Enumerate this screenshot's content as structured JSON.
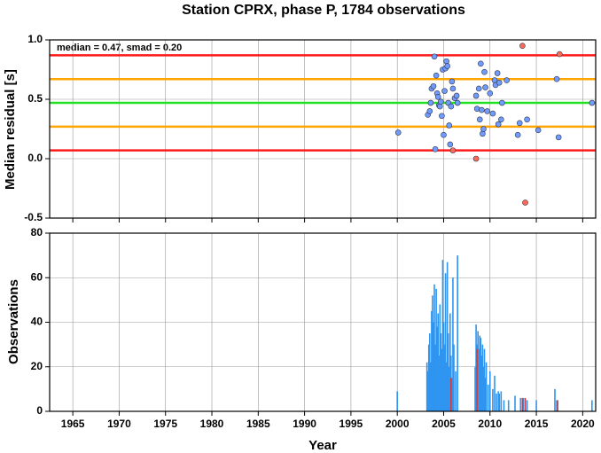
{
  "chart_data": [
    {
      "type": "scatter",
      "title": "Station CPRX, phase P, 1784 observations",
      "y_label": "Median residual [s]",
      "annotation": "median = 0.47, smad = 0.20",
      "xlim": [
        1962.5,
        2021.4
      ],
      "xticks": [
        1965,
        1970,
        1975,
        1980,
        1985,
        1990,
        1995,
        2000,
        2005,
        2010,
        2015,
        2020
      ],
      "ylim": [
        -0.5,
        1.0
      ],
      "yticks": [
        -0.5,
        {
          "value": 0,
          "label": "0.0"
        },
        0.5,
        {
          "value": 1,
          "label": "1.0"
        }
      ],
      "grid": true,
      "hlines": [
        {
          "value": 0.87,
          "color": "#ff1a1a"
        },
        {
          "value": 0.67,
          "color": "#ffa500"
        },
        {
          "value": 0.47,
          "color": "#22e022"
        },
        {
          "value": 0.27,
          "color": "#ffa500"
        },
        {
          "value": 0.07,
          "color": "#ff1a1a"
        }
      ],
      "series": [
        {
          "color": "#6f9cff",
          "x": [
            2000.1,
            2003.3,
            2003.5,
            2003.6,
            2003.7,
            2003.9,
            2004.0,
            2004.1,
            2004.2,
            2004.3,
            2004.4,
            2004.5,
            2004.6,
            2004.7,
            2004.8,
            2004.9,
            2005.0,
            2005.1,
            2005.2,
            2005.3,
            2005.4,
            2005.5,
            2005.6,
            2005.7,
            2005.8,
            2005.9,
            2006.0,
            2006.2,
            2006.4,
            2006.5,
            2008.5,
            2008.6,
            2008.8,
            2008.9,
            2009.0,
            2009.1,
            2009.2,
            2009.3,
            2009.4,
            2009.5,
            2009.7,
            2010.0,
            2010.3,
            2010.5,
            2010.6,
            2010.8,
            2010.9,
            2011.0,
            2011.2,
            2011.3,
            2011.8,
            2013.0,
            2013.2,
            2014.0,
            2015.2,
            2017.2,
            2017.4,
            2021.0
          ],
          "values": [
            0.22,
            0.37,
            0.4,
            0.47,
            0.59,
            0.61,
            0.86,
            0.08,
            0.7,
            0.55,
            0.52,
            0.45,
            0.44,
            0.48,
            0.36,
            0.75,
            0.2,
            0.57,
            0.76,
            0.82,
            0.78,
            0.47,
            0.28,
            0.12,
            0.44,
            0.65,
            0.59,
            0.51,
            0.53,
            0.47,
            0.53,
            0.42,
            0.59,
            0.33,
            0.8,
            0.41,
            0.21,
            0.25,
            0.73,
            0.6,
            0.4,
            0.55,
            0.38,
            0.66,
            0.62,
            0.72,
            0.29,
            0.64,
            0.33,
            0.47,
            0.66,
            0.2,
            0.3,
            0.33,
            0.24,
            0.67,
            0.18,
            0.47
          ]
        },
        {
          "color": "#ff6b5b",
          "x": [
            2006.0,
            2008.5,
            2013.5,
            2013.8,
            2017.5
          ],
          "values": [
            0.07,
            0.0,
            0.95,
            -0.37,
            0.88
          ]
        }
      ]
    },
    {
      "type": "bar",
      "x_label": "Year",
      "y_label": "Observations",
      "xlim": [
        1962.5,
        2021.4
      ],
      "xticks": [
        1965,
        1970,
        1975,
        1980,
        1985,
        1990,
        1995,
        2000,
        2005,
        2010,
        2015,
        2020
      ],
      "ylim": [
        0,
        80
      ],
      "yticks": [
        0,
        20,
        40,
        60,
        80
      ],
      "grid": true,
      "series": [
        {
          "color": "#2f95f0",
          "x": [
            2000.0,
            2003.2,
            2003.3,
            2003.4,
            2003.5,
            2003.6,
            2003.7,
            2003.8,
            2003.9,
            2004.0,
            2004.1,
            2004.2,
            2004.3,
            2004.4,
            2004.5,
            2004.6,
            2004.7,
            2004.8,
            2004.9,
            2005.0,
            2005.1,
            2005.2,
            2005.3,
            2005.4,
            2005.5,
            2005.6,
            2005.7,
            2005.8,
            2005.9,
            2006.0,
            2006.1,
            2006.3,
            2006.5,
            2008.4,
            2008.5,
            2008.6,
            2008.7,
            2008.8,
            2008.9,
            2009.0,
            2009.1,
            2009.2,
            2009.3,
            2009.4,
            2009.5,
            2009.6,
            2009.8,
            2010.0,
            2010.3,
            2010.5,
            2010.7,
            2010.9,
            2011.0,
            2011.2,
            2011.5,
            2012.0,
            2012.7,
            2013.3,
            2013.6,
            2014.0,
            2015.0,
            2017.0,
            2017.2,
            2021.0
          ],
          "values": [
            9,
            22,
            18,
            30,
            35,
            22,
            45,
            52,
            40,
            57,
            30,
            55,
            38,
            44,
            25,
            48,
            35,
            28,
            68,
            40,
            30,
            62,
            22,
            67,
            35,
            20,
            44,
            25,
            15,
            60,
            30,
            18,
            70,
            20,
            39,
            30,
            36,
            28,
            34,
            33,
            25,
            30,
            20,
            28,
            15,
            22,
            12,
            18,
            10,
            16,
            8,
            9,
            8,
            9,
            5,
            5,
            7,
            6,
            6,
            5,
            5,
            10,
            5,
            5
          ]
        },
        {
          "color": "#d63a3a",
          "x": [
            2005.8,
            2008.6,
            2013.5,
            2013.8,
            2017.3
          ],
          "values": [
            15,
            28,
            6,
            6,
            5
          ]
        }
      ]
    }
  ]
}
